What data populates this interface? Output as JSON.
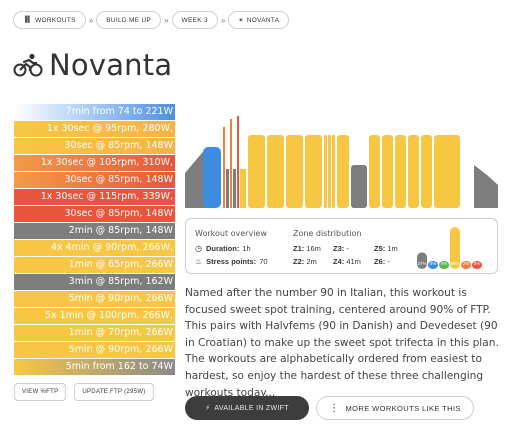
{
  "breadcrumb": [
    {
      "icon": "bar-chart-icon",
      "label": "WORKOUTS"
    },
    {
      "icon": "",
      "label": "BUILD ME UP"
    },
    {
      "icon": "",
      "label": "WEEK 3"
    },
    {
      "icon": "cyclist-icon",
      "label": "NOVANTA"
    }
  ],
  "title": "Novanta",
  "intervals": [
    {
      "text": "7min from 74 to 221W",
      "zone": "blue"
    },
    {
      "text": "1x 30sec @ 95rpm, 280W,",
      "zone": "y2o"
    },
    {
      "text": "30sec @ 85rpm, 148W",
      "zone": "y2o"
    },
    {
      "text": "1x 30sec @ 105rpm, 310W,",
      "zone": "o2r"
    },
    {
      "text": "30sec @ 85rpm, 148W",
      "zone": "o2r"
    },
    {
      "text": "1x 30sec @ 115rpm, 339W,",
      "zone": "red"
    },
    {
      "text": "30sec @ 85rpm, 148W",
      "zone": "red"
    },
    {
      "text": "2min @ 85rpm, 148W",
      "zone": "gray"
    },
    {
      "text": "4x 4min @ 90rpm, 266W,",
      "zone": "yellow"
    },
    {
      "text": "1min @ 65rpm, 266W",
      "zone": "yellow"
    },
    {
      "text": "3min @ 85rpm, 162W",
      "zone": "gray"
    },
    {
      "text": "5min @ 90rpm, 266W",
      "zone": "yellow"
    },
    {
      "text": "5x 1min @ 100rpm, 266W,",
      "zone": "yellow"
    },
    {
      "text": "1min @ 70rpm, 266W",
      "zone": "yellow"
    },
    {
      "text": "5min @ 90rpm, 266W",
      "zone": "yellow"
    },
    {
      "text": "5min from 162 to 74W",
      "zone": "g2y"
    }
  ],
  "buttons": {
    "view_ftp": "VIEW %FTP",
    "update_ftp": "UPDATE FTP (295W)",
    "available": "AVAILABLE IN ZWIFT",
    "more": "MORE WORKOUTS LIKE THIS"
  },
  "overview": {
    "heading": "Workout overview",
    "duration_label": "Duration:",
    "duration_value": "1h",
    "stress_label": "Stress points:",
    "stress_value": "70"
  },
  "zones": {
    "heading": "Zone distribution",
    "items": [
      {
        "zone": "Z1:",
        "value": "16m"
      },
      {
        "zone": "Z2:",
        "value": "2m"
      },
      {
        "zone": "Z3:",
        "value": "-"
      },
      {
        "zone": "Z4:",
        "value": "41m"
      },
      {
        "zone": "Z5:",
        "value": "1m"
      },
      {
        "zone": "Z6:",
        "value": "-"
      }
    ],
    "bars": [
      {
        "label": "27%",
        "percent": 27,
        "color": "#7d7d7d"
      },
      {
        "label": "4%",
        "percent": 4,
        "color": "#3c8de0"
      },
      {
        "label": "0%",
        "percent": 0,
        "color": "#56b64b"
      },
      {
        "label": "68%",
        "percent": 68,
        "color": "#f7c744"
      },
      {
        "label": "2%",
        "percent": 2,
        "color": "#f07e3c"
      },
      {
        "label": "0%",
        "percent": 0,
        "color": "#e8553d"
      }
    ]
  },
  "description": "Named after the number 90 in Italian, this workout is focused sweet spot training, centered around 90% of FTP. This pairs with Halvfems (90 in Danish) and Devedeset (90 in Croatian) to make up the sweet spot trifecta in this plan. The workouts are alphabetically ordered from easiest to hardest, so enjoy the hardest of these three challenging workouts today...",
  "colors": {
    "yellow": "#f7c744",
    "gray": "#7d7d7d",
    "blue": "#3c8de0",
    "orange": "#f07e3c",
    "red": "#e8553d",
    "dark_button": "#3d3d3d"
  }
}
